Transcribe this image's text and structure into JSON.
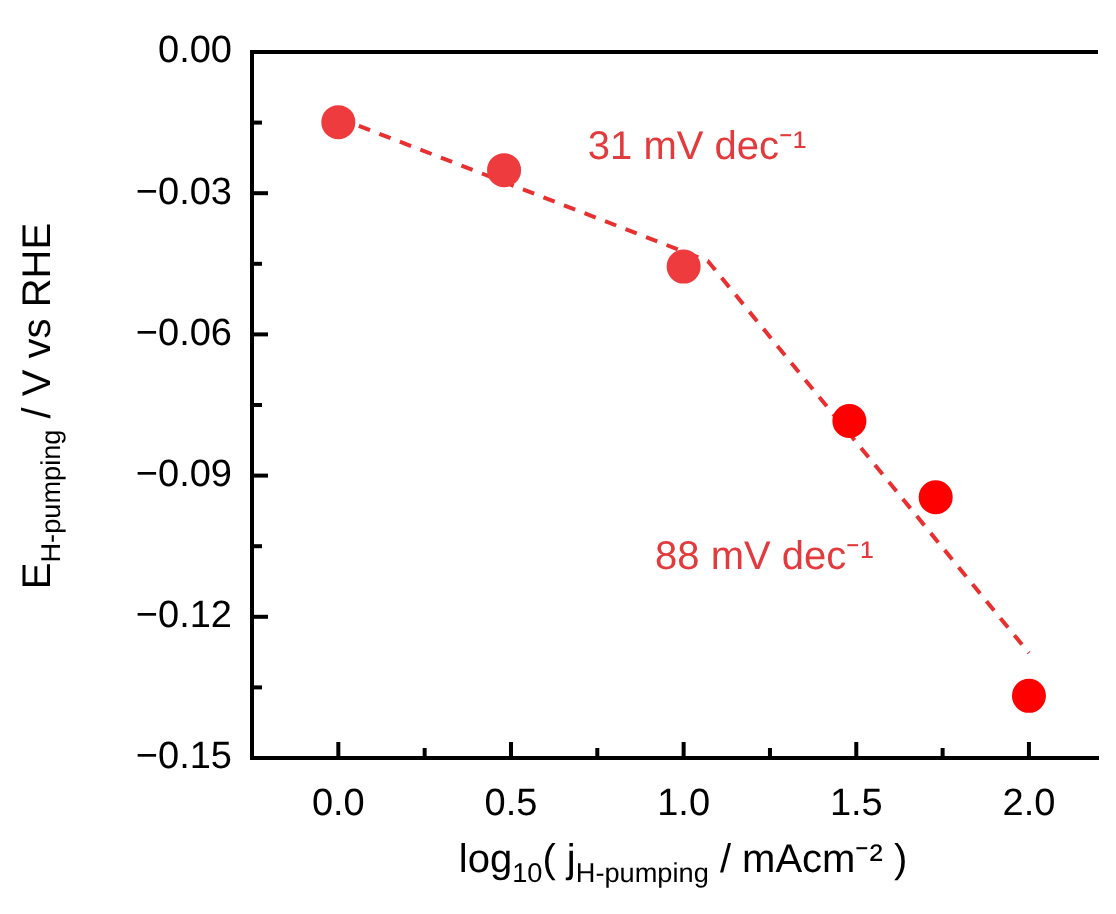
{
  "chart_data": {
    "type": "scatter",
    "xlabel": "log$_{10}$( j$_{H-pumping}$ / mAcm⁻² )",
    "ylabel": "E$_{H-pumping}$ / V vs RHE",
    "series": [
      {
        "type": "scatter",
        "color": "#ee3b3e",
        "x": [
          0,
          0.48,
          1.0
        ],
        "values": [
          -0.0149,
          -0.0251,
          -0.0456
        ]
      },
      {
        "type": "scatter",
        "color": "#ff0000",
        "x": [
          1.48,
          1.73,
          2.0
        ],
        "values": [
          -0.0784,
          -0.0946,
          -0.1368
        ]
      },
      {
        "type": "line",
        "color": "#e83030",
        "line_style": "dashed",
        "marker": "none",
        "x": [
          0,
          1.07,
          2.0
        ],
        "values": [
          -0.014,
          -0.0444,
          -0.1277
        ]
      }
    ],
    "marker": "circle",
    "xlim": [
      -0.25,
      2.2
    ],
    "ylim": [
      -0.15,
      0
    ],
    "xticks": [
      {
        "value": 0,
        "label": "0.0"
      },
      {
        "value": 0.25,
        "label": null
      },
      {
        "value": 0.5,
        "label": "0.5"
      },
      {
        "value": 0.75,
        "label": null
      },
      {
        "value": 1,
        "label": "1.0"
      },
      {
        "value": 1.25,
        "label": null
      },
      {
        "value": 1.5,
        "label": "1.5"
      },
      {
        "value": 1.75,
        "label": null
      },
      {
        "value": 2,
        "label": "2.0"
      }
    ],
    "yticks": [
      {
        "value": 0,
        "label": "0.00"
      },
      {
        "value": -0.015,
        "label": null
      },
      {
        "value": -0.03,
        "label": "−0.03"
      },
      {
        "value": -0.045,
        "label": null
      },
      {
        "value": -0.06,
        "label": "−0.06"
      },
      {
        "value": -0.075,
        "label": null
      },
      {
        "value": -0.09,
        "label": "−0.09"
      },
      {
        "value": -0.105,
        "label": null
      },
      {
        "value": -0.12,
        "label": "−0.12"
      },
      {
        "value": -0.135,
        "label": null
      },
      {
        "value": -0.15,
        "label": "−0.15"
      }
    ],
    "annotations": [
      "31 mV dec⁻¹",
      "88 mV dec⁻¹"
    ],
    "grid": false,
    "legend": false
  }
}
